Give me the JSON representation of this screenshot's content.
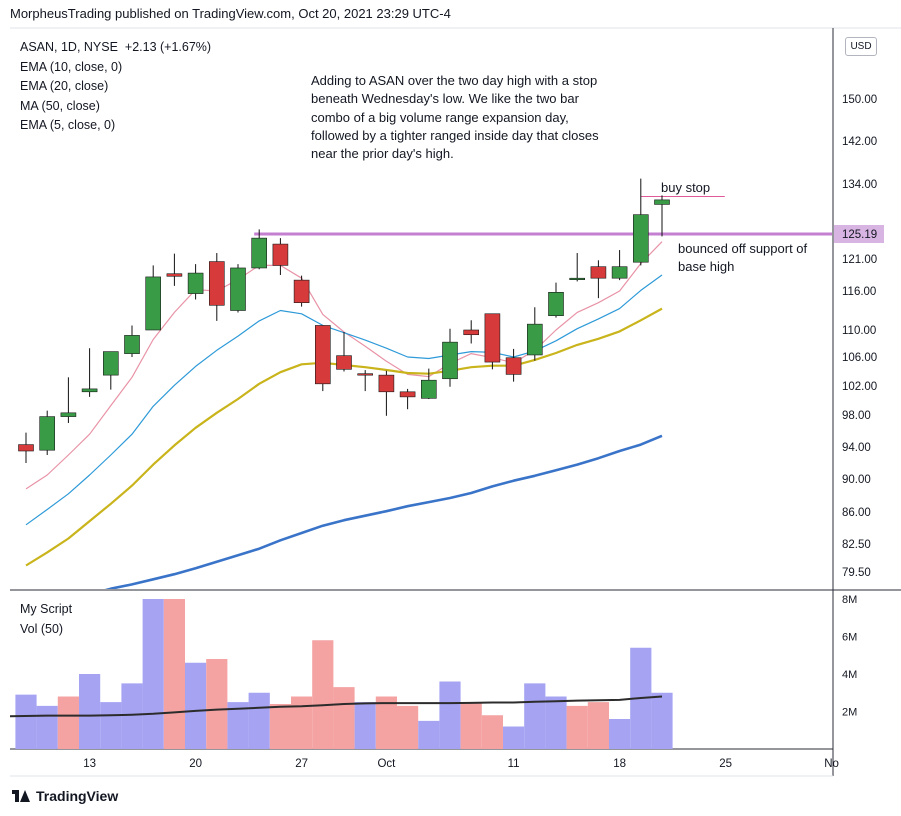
{
  "header": {
    "text": "MorpheusTrading published on TradingView.com, Oct 20, 2021 23:29 UTC-4"
  },
  "legend": {
    "symbol": "ASAN, 1D, NYSE",
    "change": "+2.13 (+1.67%)",
    "studies": [
      "EMA (10, close, 0)",
      "EMA (20, close)",
      "MA (50, close)",
      "EMA (5, close, 0)"
    ]
  },
  "volume_legend": {
    "title": "My Script",
    "study": "Vol (50)"
  },
  "currency_button": "USD",
  "annotations": {
    "main_note": "Adding to ASAN over the two day high with a stop beneath Wednesday's low.  We like the two bar combo of a big volume range expansion day, followed by a tighter ranged inside day that closes  near the prior day's high.",
    "buy_stop": "buy stop",
    "bounce_note": "bounced off support of base high"
  },
  "price_label": "125.19",
  "footer": {
    "brand": "TradingView"
  },
  "colors": {
    "up": "#3a9b47",
    "down": "#d63a3a",
    "ema5": "#e893a6",
    "ema10": "#2e9ad8",
    "ema20": "#c9b41b",
    "ma50": "#3a74c9",
    "line": "#c47fd1",
    "vol_up": "#a5a3f2",
    "vol_down": "#f4a2a2",
    "vol_ma": "#2c2c2c"
  },
  "chart_data": [
    {
      "type": "candlestick",
      "title": "",
      "x_tick_labels": [
        "13",
        "20",
        "27",
        "Oct",
        "11",
        "18",
        "25",
        "No"
      ],
      "y_tick_labels": [
        "79.50",
        "82.50",
        "86.00",
        "90.00",
        "94.00",
        "98.00",
        "102.00",
        "106.00",
        "110.00",
        "116.00",
        "121.00",
        "125.19",
        "134.00",
        "142.00",
        "150.00"
      ],
      "ohlc": [
        {
          "o": 94.3,
          "h": 95.8,
          "l": 92.0,
          "c": 93.5
        },
        {
          "o": 93.6,
          "h": 98.6,
          "l": 93.0,
          "c": 97.8
        },
        {
          "o": 97.8,
          "h": 103.2,
          "l": 97.0,
          "c": 98.3
        },
        {
          "o": 101.2,
          "h": 107.3,
          "l": 100.5,
          "c": 101.6
        },
        {
          "o": 103.5,
          "h": 106.8,
          "l": 101.5,
          "c": 106.8
        },
        {
          "o": 106.5,
          "h": 110.7,
          "l": 106.0,
          "c": 109.2
        },
        {
          "o": 110.0,
          "h": 120.0,
          "l": 110.0,
          "c": 118.2
        },
        {
          "o": 118.7,
          "h": 121.9,
          "l": 116.8,
          "c": 118.3
        },
        {
          "o": 115.6,
          "h": 120.2,
          "l": 114.7,
          "c": 118.8
        },
        {
          "o": 120.6,
          "h": 122.0,
          "l": 111.4,
          "c": 113.8
        },
        {
          "o": 113.0,
          "h": 120.2,
          "l": 112.7,
          "c": 119.6
        },
        {
          "o": 119.6,
          "h": 126.0,
          "l": 119.4,
          "c": 124.5
        },
        {
          "o": 123.5,
          "h": 124.5,
          "l": 118.5,
          "c": 120.0
        },
        {
          "o": 117.7,
          "h": 118.4,
          "l": 113.6,
          "c": 114.2
        },
        {
          "o": 110.7,
          "h": 110.7,
          "l": 101.3,
          "c": 102.3
        },
        {
          "o": 106.2,
          "h": 109.7,
          "l": 104.0,
          "c": 104.3
        },
        {
          "o": 103.7,
          "h": 104.2,
          "l": 101.3,
          "c": 103.6
        },
        {
          "o": 103.5,
          "h": 104.1,
          "l": 97.9,
          "c": 101.2
        },
        {
          "o": 101.2,
          "h": 101.6,
          "l": 98.8,
          "c": 100.5
        },
        {
          "o": 100.3,
          "h": 104.4,
          "l": 100.2,
          "c": 102.8
        },
        {
          "o": 103.0,
          "h": 110.2,
          "l": 101.9,
          "c": 108.2
        },
        {
          "o": 110.0,
          "h": 111.5,
          "l": 108.0,
          "c": 109.3
        },
        {
          "o": 112.5,
          "h": 112.5,
          "l": 104.3,
          "c": 105.3
        },
        {
          "o": 105.9,
          "h": 107.2,
          "l": 102.6,
          "c": 103.6
        },
        {
          "o": 106.3,
          "h": 113.5,
          "l": 105.5,
          "c": 110.9
        },
        {
          "o": 112.2,
          "h": 117.3,
          "l": 111.9,
          "c": 115.8
        },
        {
          "o": 118.0,
          "h": 122.0,
          "l": 117.5,
          "c": 118.0
        },
        {
          "o": 119.8,
          "h": 120.8,
          "l": 114.9,
          "c": 118.0
        },
        {
          "o": 118.0,
          "h": 122.5,
          "l": 117.7,
          "c": 119.8
        },
        {
          "o": 120.5,
          "h": 135.0,
          "l": 120.0,
          "c": 128.6
        },
        {
          "o": 130.4,
          "h": 132.0,
          "l": 124.8,
          "c": 131.2
        }
      ],
      "series": [
        {
          "name": "EMA (5, close, 0)",
          "values": [
            88.8,
            90.5,
            93.0,
            95.6,
            99.3,
            103.2,
            108.6,
            112.7,
            116.2,
            116.0,
            117.8,
            120.0,
            120.0,
            118.0,
            112.4,
            109.7,
            107.6,
            105.4,
            103.6,
            103.3,
            105.1,
            106.5,
            105.9,
            105.2,
            107.0,
            110.0,
            112.7,
            114.2,
            116.0,
            120.3,
            123.9
          ]
        },
        {
          "name": "EMA (10, close, 0)",
          "values": [
            84.6,
            86.3,
            88.2,
            90.5,
            93.0,
            95.6,
            99.2,
            102.1,
            104.7,
            107.0,
            109.1,
            111.4,
            113.0,
            112.5,
            110.7,
            109.6,
            108.5,
            107.3,
            106.0,
            105.8,
            106.3,
            106.8,
            106.7,
            106.0,
            106.9,
            108.4,
            110.2,
            111.7,
            113.3,
            116.1,
            118.5
          ]
        },
        {
          "name": "EMA (20, close)",
          "values": [
            80.2,
            81.6,
            83.1,
            85.0,
            87.0,
            89.2,
            91.8,
            94.2,
            96.4,
            98.3,
            100.2,
            102.3,
            103.9,
            105.0,
            105.2,
            104.9,
            104.6,
            104.2,
            103.8,
            103.7,
            104.1,
            104.6,
            104.8,
            104.8,
            105.6,
            106.6,
            107.8,
            108.7,
            109.8,
            111.5,
            113.3
          ]
        },
        {
          "name": "MA (50, close)",
          "values": [
            74.0,
            74.8,
            75.6,
            76.4,
            77.2,
            77.8,
            78.5,
            79.2,
            79.9,
            80.6,
            81.3,
            82.0,
            82.9,
            83.7,
            84.5,
            85.1,
            85.6,
            86.1,
            86.7,
            87.2,
            87.7,
            88.3,
            89.1,
            89.8,
            90.4,
            91.1,
            91.8,
            92.6,
            93.5,
            94.3,
            95.4
          ]
        }
      ],
      "horizontal_lines": [
        {
          "value": 125.19
        },
        {
          "value": 131.8
        }
      ]
    },
    {
      "type": "bar",
      "title": "",
      "y_tick_labels": [
        "8M",
        "6M",
        "4M",
        "2M"
      ],
      "values": [
        2.9,
        2.3,
        2.8,
        4.0,
        2.5,
        3.5,
        8.0,
        8.0,
        4.6,
        4.8,
        2.5,
        3.0,
        2.4,
        2.8,
        5.8,
        3.3,
        2.5,
        2.8,
        2.3,
        1.5,
        3.6,
        2.5,
        1.8,
        1.2,
        3.5,
        2.8,
        2.3,
        2.5,
        1.6,
        5.4,
        3.0
      ],
      "up": [
        true,
        true,
        false,
        true,
        true,
        true,
        true,
        false,
        true,
        false,
        true,
        true,
        false,
        false,
        false,
        false,
        true,
        false,
        false,
        true,
        true,
        false,
        false,
        true,
        true,
        true,
        false,
        false,
        true,
        true,
        true
      ],
      "ma": [
        1.75,
        1.78,
        1.78,
        1.78,
        1.8,
        1.83,
        1.88,
        1.95,
        2.03,
        2.1,
        2.15,
        2.2,
        2.25,
        2.28,
        2.33,
        2.4,
        2.43,
        2.45,
        2.45,
        2.45,
        2.45,
        2.46,
        2.48,
        2.48,
        2.52,
        2.55,
        2.58,
        2.6,
        2.62,
        2.72,
        2.8
      ]
    }
  ]
}
